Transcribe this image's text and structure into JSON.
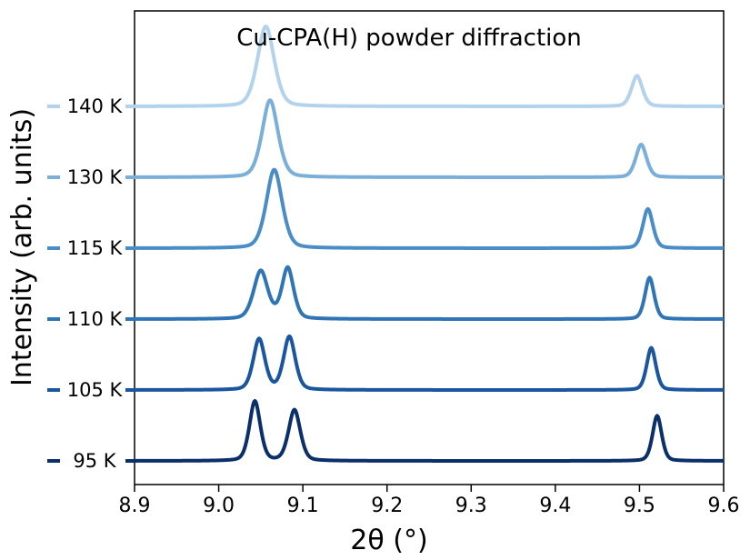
{
  "chart_data": {
    "type": "line",
    "title": "Cu-CPA(H) powder diffraction",
    "xlabel": "2θ (°)",
    "ylabel": "Intensity (arb. units)",
    "xlim": [
      8.9,
      9.6
    ],
    "xticks": [
      "8.9",
      "9.0",
      "9.1",
      "9.2",
      "9.3",
      "9.4",
      "9.5",
      "9.6"
    ],
    "yticks_shown": false,
    "grid": false,
    "legend": "inline labels at left of each trace",
    "series": [
      {
        "name": "95 K",
        "color": "#0b2f6b",
        "offset": 0,
        "peaks": [
          {
            "x": 9.043,
            "height": 0.82,
            "width": 0.0065
          },
          {
            "x": 9.09,
            "height": 0.7,
            "width": 0.007
          },
          {
            "x": 9.521,
            "height": 0.62,
            "width": 0.0055
          }
        ]
      },
      {
        "name": "105 K",
        "color": "#1a569f",
        "offset": 1,
        "peaks": [
          {
            "x": 9.048,
            "height": 0.7,
            "width": 0.007
          },
          {
            "x": 9.084,
            "height": 0.73,
            "width": 0.007
          },
          {
            "x": 9.514,
            "height": 0.58,
            "width": 0.0055
          }
        ]
      },
      {
        "name": "110 K",
        "color": "#2f74b5",
        "offset": 2,
        "peaks": [
          {
            "x": 9.05,
            "height": 0.66,
            "width": 0.0085
          },
          {
            "x": 9.082,
            "height": 0.7,
            "width": 0.007
          },
          {
            "x": 9.512,
            "height": 0.57,
            "width": 0.0055
          }
        ]
      },
      {
        "name": "115 K",
        "color": "#4a8cc6",
        "offset": 3,
        "peaks": [
          {
            "x": 9.066,
            "height": 1.08,
            "width": 0.0095
          },
          {
            "x": 9.51,
            "height": 0.54,
            "width": 0.006
          }
        ]
      },
      {
        "name": "130 K",
        "color": "#7aafd9",
        "offset": 4,
        "peaks": [
          {
            "x": 9.061,
            "height": 1.06,
            "width": 0.0095
          },
          {
            "x": 9.502,
            "height": 0.45,
            "width": 0.0065
          }
        ]
      },
      {
        "name": "140 K",
        "color": "#b3d3ec",
        "offset": 5,
        "peaks": [
          {
            "x": 9.056,
            "height": 1.1,
            "width": 0.01
          },
          {
            "x": 9.497,
            "height": 0.42,
            "width": 0.0065
          }
        ]
      }
    ]
  }
}
